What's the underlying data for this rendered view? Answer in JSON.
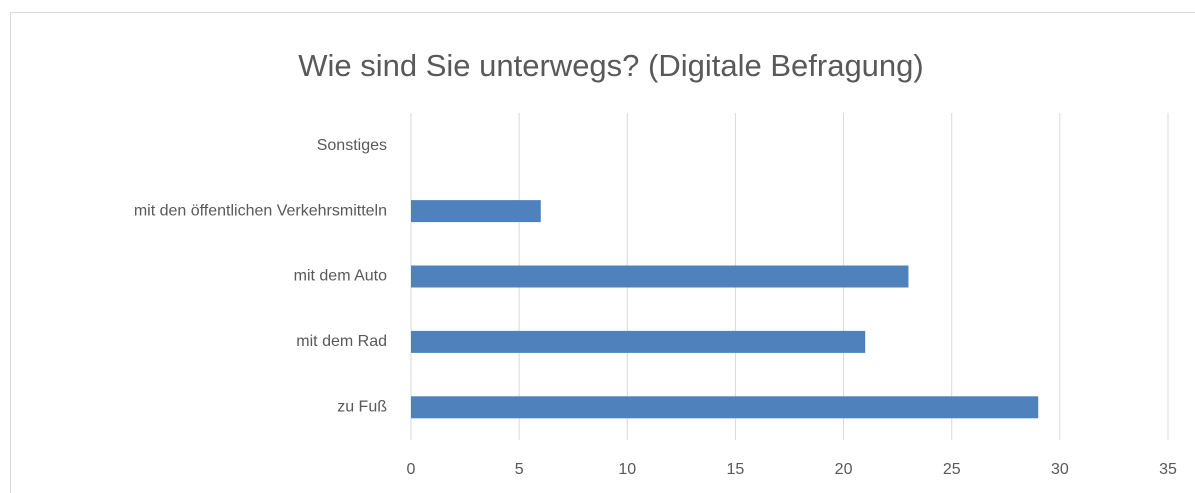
{
  "chart_data": {
    "type": "hbar",
    "title": "Wie sind Sie unterwegs? (Digitale Befragung)",
    "categories": [
      "Sonstiges",
      "mit den öffentlichen Verkehrsmitteln",
      "mit dem Auto",
      "mit dem Rad",
      "zu Fuß"
    ],
    "values": [
      0,
      6,
      23,
      21,
      29
    ],
    "color": "#4f81bd",
    "xlim": [
      0,
      35
    ],
    "xticks": [
      0,
      5,
      10,
      15,
      20,
      25,
      30,
      35
    ],
    "grid": true
  }
}
